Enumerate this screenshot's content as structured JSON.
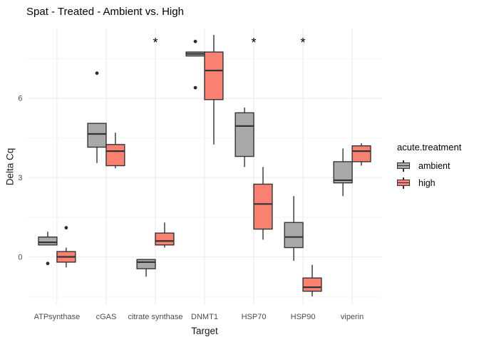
{
  "title": "Spat - Treated - Ambient vs. High",
  "legend": {
    "title": "acute.treatment",
    "items": [
      {
        "label": "ambient",
        "color": "#A9A9A9"
      },
      {
        "label": "high",
        "color": "#FA8072"
      }
    ]
  },
  "chart_data": {
    "type": "boxplot",
    "title": "Spat - Treated - Ambient vs. High",
    "xlabel": "Target",
    "ylabel": "Delta Cq",
    "categories": [
      "ATPsynthase",
      "cGAS",
      "citrate synthase",
      "DNMT1",
      "HSP70",
      "HSP90",
      "viperin"
    ],
    "groups": [
      "ambient",
      "high"
    ],
    "ylim": [
      -1.82,
      8.64
    ],
    "y_major_ticks": [
      0,
      3,
      6
    ],
    "y_minor_gridlines": [
      -1.5,
      1.5,
      4.5,
      7.5
    ],
    "grid": true,
    "legend_position": "right",
    "significance": {
      "symbol": "*",
      "categories": [
        "citrate synthase",
        "HSP70",
        "HSP90"
      ],
      "y": 8.1
    },
    "colors": {
      "ambient_fill": "#A9A9A9",
      "high_fill": "#FA8072",
      "box_outline": "#343434",
      "outlier": "#2b2b2b",
      "grid_major": "#EBEBEB",
      "grid_minor": "#F4F4F4",
      "tick_label": "#4D4D4D",
      "text": "#000000",
      "background": "#FFFFFF"
    },
    "series": [
      {
        "name": "ambient",
        "boxes": [
          {
            "whisker_low": 0.45,
            "q1": 0.45,
            "median": 0.55,
            "q3": 0.75,
            "whisker_high": 0.95,
            "outliers": [
              -0.25
            ]
          },
          {
            "whisker_low": 3.55,
            "q1": 4.15,
            "median": 4.65,
            "q3": 5.05,
            "whisker_high": 5.05,
            "outliers": [
              6.95
            ]
          },
          {
            "whisker_low": -0.75,
            "q1": -0.45,
            "median": -0.2,
            "q3": -0.1,
            "whisker_high": -0.1,
            "outliers": []
          },
          {
            "whisker_low": 7.6,
            "q1": 7.6,
            "median": 7.68,
            "q3": 7.75,
            "whisker_high": 7.75,
            "outliers": [
              8.15,
              6.4
            ]
          },
          {
            "whisker_low": 3.4,
            "q1": 3.8,
            "median": 4.95,
            "q3": 5.45,
            "whisker_high": 5.65,
            "outliers": []
          },
          {
            "whisker_low": -0.15,
            "q1": 0.35,
            "median": 0.75,
            "q3": 1.3,
            "whisker_high": 2.3,
            "outliers": []
          },
          {
            "whisker_low": 2.3,
            "q1": 2.8,
            "median": 2.9,
            "q3": 3.6,
            "whisker_high": 4.1,
            "outliers": []
          }
        ]
      },
      {
        "name": "high",
        "boxes": [
          {
            "whisker_low": -0.4,
            "q1": -0.2,
            "median": 0.0,
            "q3": 0.2,
            "whisker_high": 0.35,
            "outliers": [
              1.1
            ]
          },
          {
            "whisker_low": 3.35,
            "q1": 3.45,
            "median": 4.0,
            "q3": 4.25,
            "whisker_high": 4.7,
            "outliers": []
          },
          {
            "whisker_low": 0.35,
            "q1": 0.45,
            "median": 0.6,
            "q3": 0.9,
            "whisker_high": 1.3,
            "outliers": []
          },
          {
            "whisker_low": 4.25,
            "q1": 5.95,
            "median": 7.05,
            "q3": 7.75,
            "whisker_high": 8.4,
            "outliers": []
          },
          {
            "whisker_low": 0.65,
            "q1": 1.05,
            "median": 2.0,
            "q3": 2.75,
            "whisker_high": 3.4,
            "outliers": []
          },
          {
            "whisker_low": -1.5,
            "q1": -1.3,
            "median": -1.15,
            "q3": -0.8,
            "whisker_high": -0.3,
            "outliers": []
          },
          {
            "whisker_low": 3.45,
            "q1": 3.6,
            "median": 4.0,
            "q3": 4.2,
            "whisker_high": 4.3,
            "outliers": []
          }
        ]
      }
    ]
  }
}
